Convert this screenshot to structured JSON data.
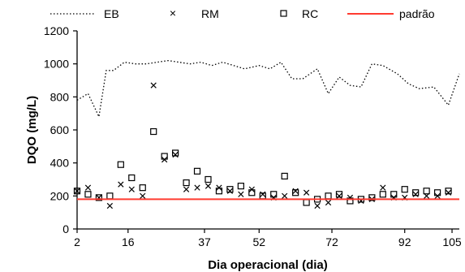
{
  "chart_data": {
    "type": "line",
    "xlabel": "Dia operacional (dia)",
    "ylabel": "DQO (mg/L)",
    "xlim": [
      2,
      107
    ],
    "ylim": [
      0,
      1200
    ],
    "x_ticks": [
      2,
      16,
      37,
      52,
      72,
      92,
      105
    ],
    "y_ticks": [
      0,
      200,
      400,
      600,
      800,
      1000,
      1200
    ],
    "grid": false,
    "legend_position": "top",
    "series": [
      {
        "name": "EB",
        "style": "dotted-line",
        "color": "#000000",
        "x": [
          2,
          5,
          8,
          10,
          12,
          15,
          18,
          21,
          24,
          27,
          30,
          33,
          36,
          39,
          42,
          45,
          48,
          52,
          55,
          58,
          61,
          64,
          68,
          71,
          74,
          77,
          80,
          83,
          86,
          90,
          93,
          96,
          100,
          104,
          107
        ],
        "values": [
          780,
          820,
          680,
          960,
          960,
          1010,
          1000,
          1000,
          1010,
          1020,
          1010,
          1000,
          1010,
          990,
          1010,
          990,
          970,
          990,
          970,
          1010,
          910,
          910,
          970,
          820,
          920,
          870,
          860,
          1000,
          990,
          940,
          880,
          850,
          860,
          750,
          940
        ]
      },
      {
        "name": "RM",
        "style": "marker-x",
        "color": "#000000",
        "x": [
          2,
          5,
          8,
          11,
          14,
          17,
          20,
          23,
          26,
          29,
          32,
          35,
          38,
          41,
          44,
          47,
          50,
          53,
          56,
          59,
          62,
          65,
          68,
          71,
          74,
          77,
          80,
          83,
          86,
          89,
          92,
          95,
          98,
          101,
          104
        ],
        "values": [
          230,
          250,
          190,
          140,
          270,
          240,
          200,
          870,
          420,
          450,
          240,
          250,
          260,
          250,
          230,
          210,
          240,
          210,
          190,
          200,
          230,
          220,
          140,
          160,
          200,
          190,
          170,
          180,
          250,
          190,
          190,
          210,
          200,
          200,
          220
        ]
      },
      {
        "name": "RC",
        "style": "marker-square",
        "color": "#000000",
        "x": [
          2,
          5,
          8,
          11,
          14,
          17,
          20,
          23,
          26,
          29,
          32,
          35,
          38,
          41,
          44,
          47,
          50,
          53,
          56,
          59,
          62,
          65,
          68,
          71,
          74,
          77,
          80,
          83,
          86,
          89,
          92,
          95,
          98,
          101,
          104
        ],
        "values": [
          230,
          210,
          190,
          200,
          390,
          310,
          250,
          590,
          440,
          460,
          280,
          350,
          300,
          230,
          240,
          260,
          220,
          200,
          210,
          320,
          220,
          160,
          180,
          200,
          210,
          170,
          180,
          190,
          210,
          210,
          240,
          220,
          230,
          220,
          230
        ]
      },
      {
        "name": "padrão",
        "style": "solid-line",
        "color": "#ff3b30",
        "x": [
          2,
          107
        ],
        "values": [
          180,
          180
        ]
      }
    ]
  }
}
